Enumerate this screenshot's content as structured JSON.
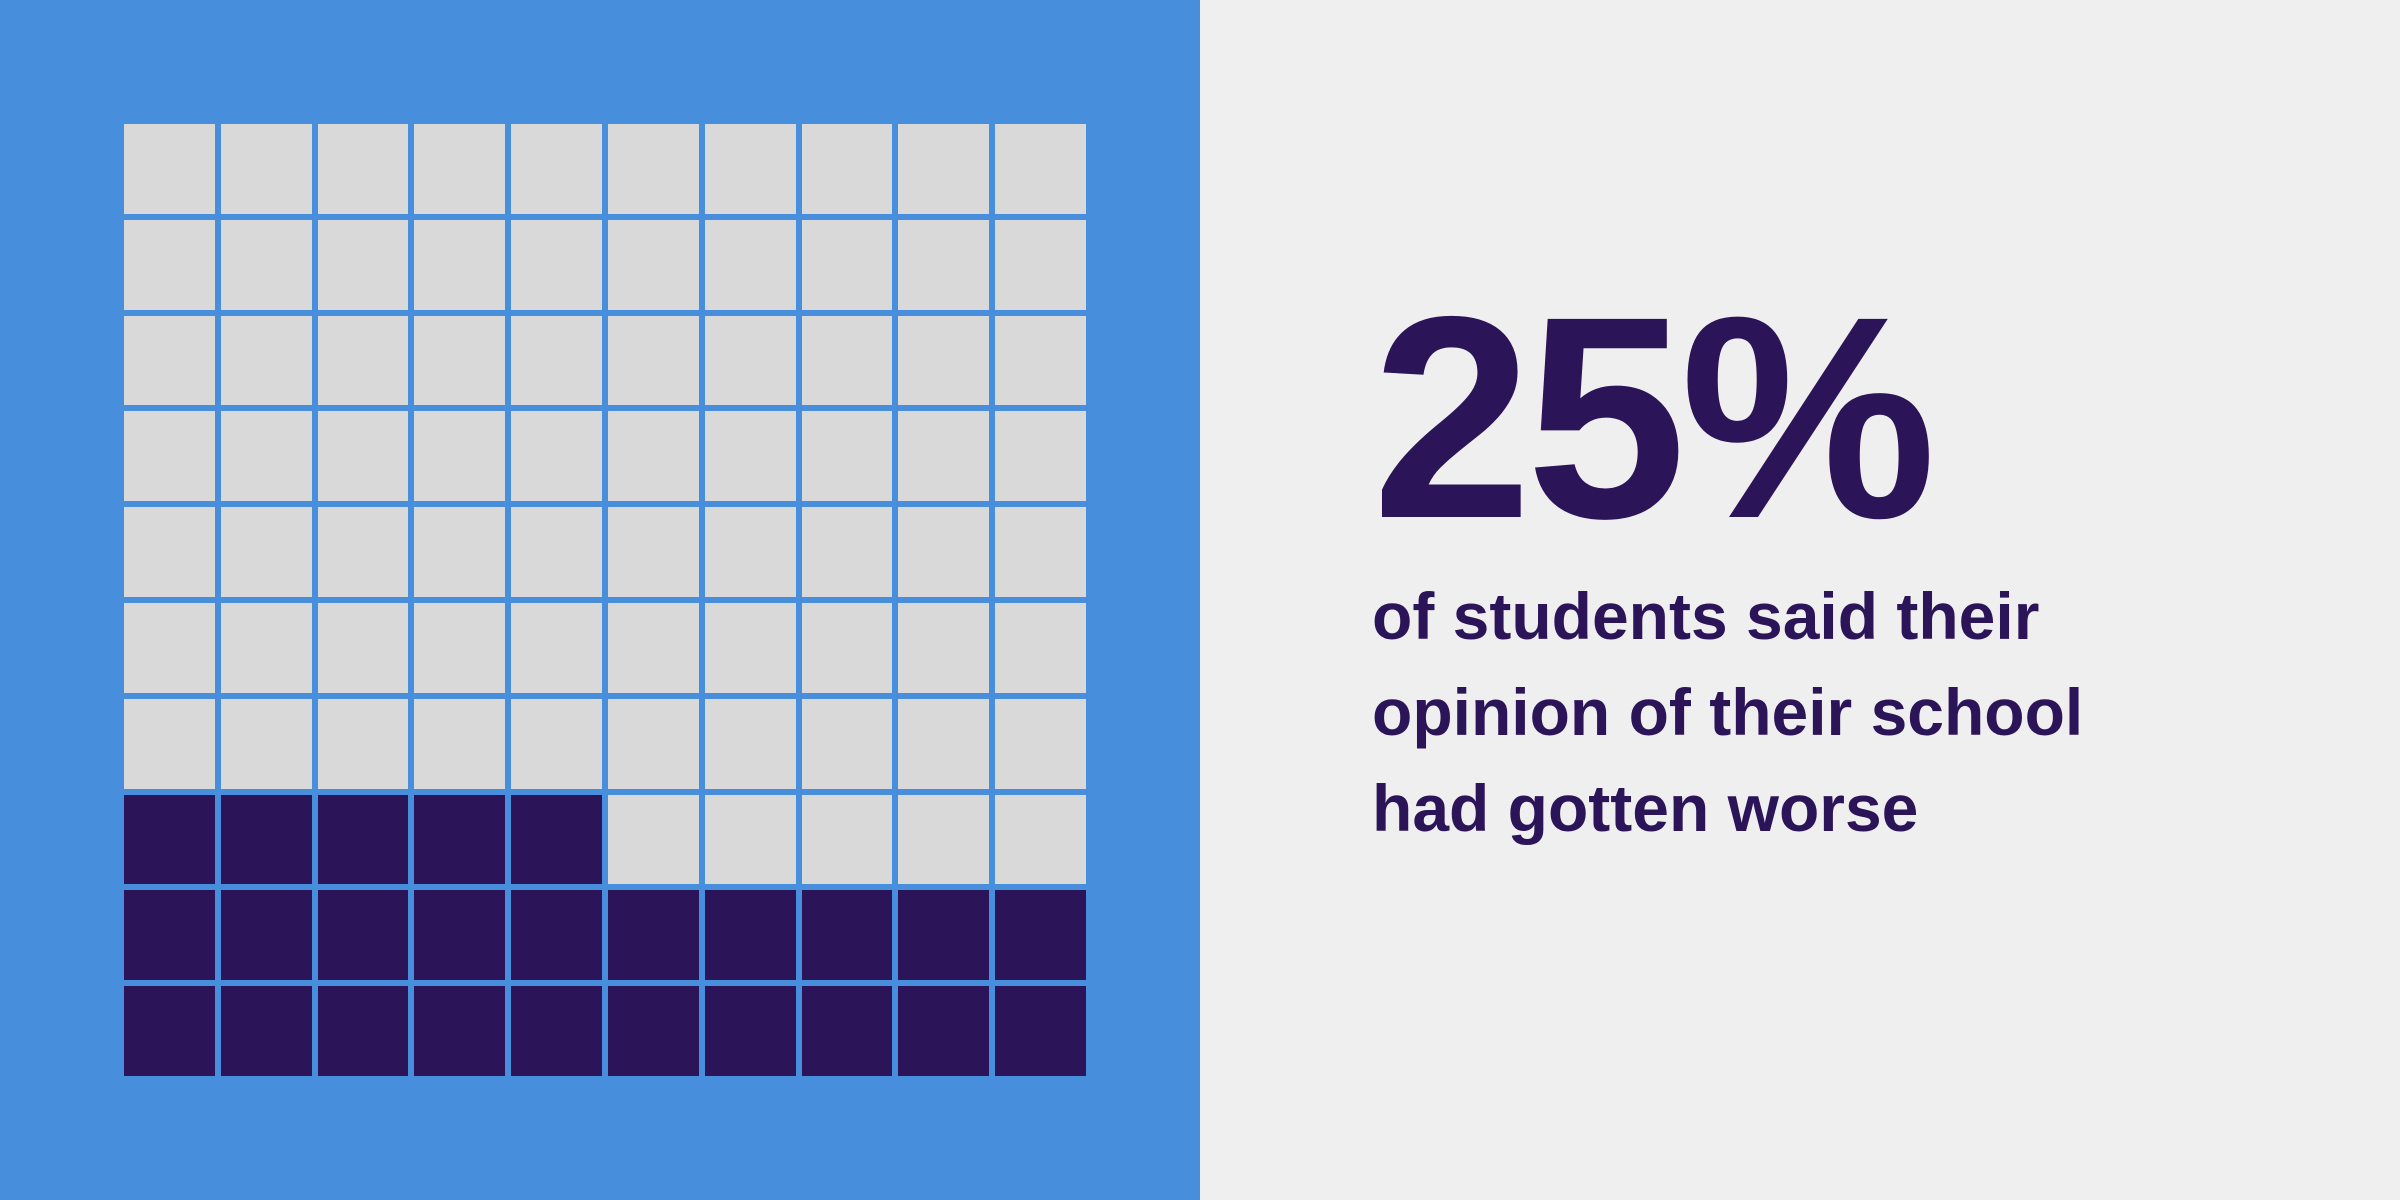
{
  "colors": {
    "left_background": "#478fdd",
    "right_background": "#efefef",
    "filled": "#2b1458",
    "empty": "#d9d9d9",
    "text": "#2b1458"
  },
  "stat": {
    "value": "25%",
    "caption_lines": [
      "of students said their",
      "opinion of their school",
      "had gotten worse"
    ]
  },
  "chart_data": {
    "type": "waffle",
    "rows": 10,
    "columns": 10,
    "total": 100,
    "filled": 25,
    "fill_order": "bottom-up, left-to-right",
    "colors": {
      "filled": "#2b1458",
      "empty": "#d9d9d9"
    }
  }
}
